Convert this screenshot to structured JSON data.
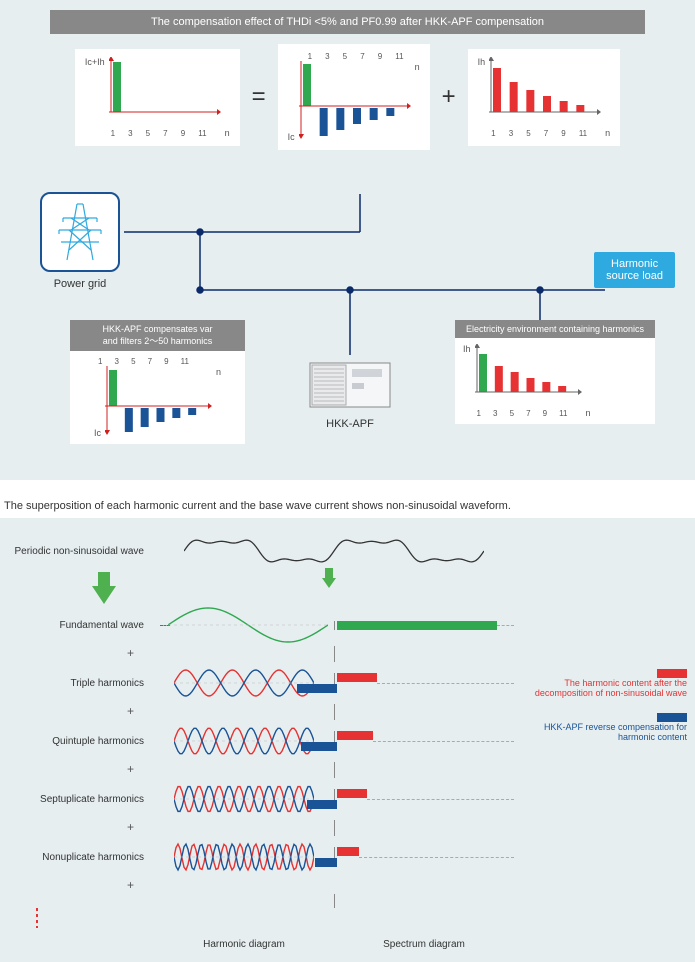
{
  "panel1": {
    "title": "The compensation effect of THDi <5% and PF0.99 after HKK-APF compensation",
    "chart1": {
      "ylabel": "Ic+Ih",
      "xlabel_n": "n",
      "ticks": [
        "1",
        "3",
        "5",
        "7",
        "9",
        "11"
      ],
      "bars": [
        {
          "h": 50,
          "c": "#2fa84f"
        }
      ],
      "axis_w": 100,
      "axis_color": "#d02020"
    },
    "op_eq": "=",
    "chart2": {
      "ylabel_top": "",
      "ylabel_bottom": "Ic",
      "xlabel_n": "n",
      "ticks": [
        "1",
        "3",
        "5",
        "7",
        "9",
        "11"
      ],
      "bars_up": [
        {
          "h": 42,
          "c": "#2fa84f"
        }
      ],
      "bars_down": [
        {
          "h": 0
        },
        {
          "h": 28,
          "c": "#1a5396"
        },
        {
          "h": 22,
          "c": "#1a5396"
        },
        {
          "h": 16,
          "c": "#1a5396"
        },
        {
          "h": 12,
          "c": "#1a5396"
        },
        {
          "h": 8,
          "c": "#1a5396"
        }
      ],
      "axis_w": 100,
      "axis_color": "#d02020"
    },
    "op_plus": "+",
    "chart3": {
      "ylabel": "Ih",
      "xlabel_n": "n",
      "ticks": [
        "1",
        "3",
        "5",
        "7",
        "9",
        "11"
      ],
      "bars": [
        {
          "h": 44,
          "c": "#e63232"
        },
        {
          "h": 30,
          "c": "#e63232"
        },
        {
          "h": 22,
          "c": "#e63232"
        },
        {
          "h": 16,
          "c": "#e63232"
        },
        {
          "h": 11,
          "c": "#e63232"
        },
        {
          "h": 7,
          "c": "#e63232"
        }
      ],
      "axis_w": 100,
      "axis_color": "#666"
    },
    "power_grid_label": "Power grid",
    "harmonic_load": "Harmonic\nsource load",
    "hkk_apf_label": "HKK-APF",
    "sub_chart_left": {
      "title": "HKK-APF compensates var\nand filters 2～50 harmonics",
      "ylabel_bottom": "Ic",
      "xlabel_n": "n",
      "ticks": [
        "1",
        "3",
        "5",
        "7",
        "9",
        "11"
      ],
      "bars_up": [
        {
          "h": 36,
          "c": "#2fa84f"
        }
      ],
      "bars_down": [
        {
          "h": 0
        },
        {
          "h": 24,
          "c": "#1a5396"
        },
        {
          "h": 19,
          "c": "#1a5396"
        },
        {
          "h": 14,
          "c": "#1a5396"
        },
        {
          "h": 10,
          "c": "#1a5396"
        },
        {
          "h": 7,
          "c": "#1a5396"
        }
      ],
      "axis_w": 95,
      "axis_color": "#d02020"
    },
    "sub_chart_right": {
      "title": "Electricity environment containing harmonics",
      "ylabel": "Ih",
      "xlabel_n": "n",
      "ticks": [
        "1",
        "3",
        "5",
        "7",
        "9",
        "11"
      ],
      "bars": [
        {
          "h": 38,
          "c": "#2fa84f"
        },
        {
          "h": 26,
          "c": "#e63232"
        },
        {
          "h": 20,
          "c": "#e63232"
        },
        {
          "h": 14,
          "c": "#e63232"
        },
        {
          "h": 10,
          "c": "#e63232"
        },
        {
          "h": 6,
          "c": "#e63232"
        }
      ],
      "axis_w": 95,
      "axis_color": "#666"
    },
    "wire_color": "#0a2a6a"
  },
  "panel2": {
    "caption": "The superposition of each harmonic current and the base wave current shows non-sinusoidal waveform.",
    "rows": [
      {
        "label": "Periodic non-sinusoidal wave",
        "type": "nonsine",
        "spectrum": null
      },
      {
        "label": "Fundamental wave",
        "type": "sine",
        "freq": 1,
        "color": "#2fa84f",
        "spectrum": {
          "w": 160,
          "c": "g"
        },
        "dashed_before": true
      },
      {
        "label": "Triple harmonics",
        "type": "dual",
        "freq": 3,
        "spectrum": {
          "w": 40,
          "c": "r",
          "b": 40
        }
      },
      {
        "label": "Quintuple harmonics",
        "type": "dual",
        "freq": 5,
        "spectrum": {
          "w": 36,
          "c": "r",
          "b": 36
        }
      },
      {
        "label": "Septuplicate harmonics",
        "type": "dual",
        "freq": 7,
        "spectrum": {
          "w": 30,
          "c": "r",
          "b": 30
        }
      },
      {
        "label": "Nonuplicate harmonics",
        "type": "dual",
        "freq": 9,
        "spectrum": {
          "w": 22,
          "c": "r",
          "b": 22
        }
      }
    ],
    "bottom": {
      "left": "Harmonic diagram",
      "right": "Spectrum diagram"
    },
    "legend": [
      {
        "text": "The harmonic content after the decomposition of non-sinusoidal wave",
        "color": "#e63232"
      },
      {
        "text": "HKK-APF reverse compensation for harmonic content",
        "color": "#1a5396"
      }
    ],
    "plus": "+",
    "dash_color": "#e63232"
  }
}
